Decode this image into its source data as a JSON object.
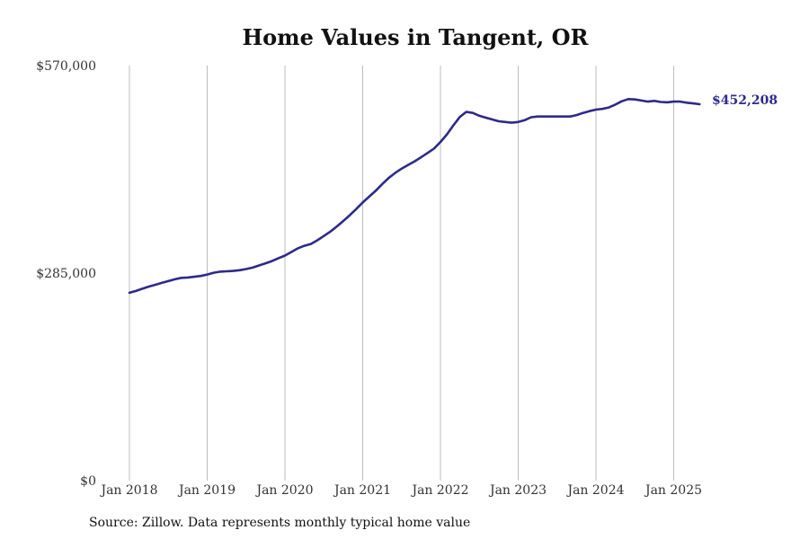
{
  "chart_data": {
    "type": "line",
    "title": "Home Values in Tangent, OR",
    "xlabel": "",
    "ylabel": "",
    "ylim": [
      0,
      570000
    ],
    "y_ticks": [
      {
        "value": 0,
        "label": "$0"
      },
      {
        "value": 285000,
        "label": "$285,000"
      },
      {
        "value": 570000,
        "label": "$570,000"
      }
    ],
    "x_ticks": [
      {
        "value": 2018,
        "label": "Jan 2018"
      },
      {
        "value": 2019,
        "label": "Jan 2019"
      },
      {
        "value": 2020,
        "label": "Jan 2020"
      },
      {
        "value": 2021,
        "label": "Jan 2021"
      },
      {
        "value": 2022,
        "label": "Jan 2022"
      },
      {
        "value": 2023,
        "label": "Jan 2023"
      },
      {
        "value": 2024,
        "label": "Jan 2024"
      },
      {
        "value": 2025,
        "label": "Jan 2025"
      }
    ],
    "grid": "vertical",
    "line_color": "#2e2a8a",
    "end_label": "$452,208",
    "series": [
      {
        "x": [
          "2018-01",
          "2018-02",
          "2018-03",
          "2018-04",
          "2018-05",
          "2018-06",
          "2018-07",
          "2018-08",
          "2018-09",
          "2018-10",
          "2018-11",
          "2018-12",
          "2019-01",
          "2019-02",
          "2019-03",
          "2019-04",
          "2019-05",
          "2019-06",
          "2019-07",
          "2019-08",
          "2019-09",
          "2019-10",
          "2019-11",
          "2019-12",
          "2020-01",
          "2020-02",
          "2020-03",
          "2020-04",
          "2020-05",
          "2020-06",
          "2020-07",
          "2020-08",
          "2020-09",
          "2020-10",
          "2020-11",
          "2020-12",
          "2021-01",
          "2021-02",
          "2021-03",
          "2021-04",
          "2021-05",
          "2021-06",
          "2021-07",
          "2021-08",
          "2021-09",
          "2021-10",
          "2021-11",
          "2021-12",
          "2022-01",
          "2022-02",
          "2022-03",
          "2022-04",
          "2022-05",
          "2022-06",
          "2022-07",
          "2022-08",
          "2022-09",
          "2022-10",
          "2022-11",
          "2022-12",
          "2023-01",
          "2023-02",
          "2023-03",
          "2023-04",
          "2023-05",
          "2023-06",
          "2023-07",
          "2023-08",
          "2023-09",
          "2023-10",
          "2023-11",
          "2023-12",
          "2024-01",
          "2024-02",
          "2024-03",
          "2024-04",
          "2024-05",
          "2024-06",
          "2024-07",
          "2024-08",
          "2024-09",
          "2024-10",
          "2024-11",
          "2024-12",
          "2025-01",
          "2025-02",
          "2025-03",
          "2025-04",
          "2025-05"
        ],
        "values": [
          258000,
          260500,
          263500,
          266500,
          269000,
          271500,
          274000,
          276500,
          278500,
          279000,
          280000,
          281000,
          283000,
          285500,
          287000,
          287500,
          288000,
          289000,
          290500,
          292500,
          295500,
          298500,
          301500,
          305500,
          309000,
          314000,
          319000,
          322500,
          325000,
          330000,
          336000,
          342000,
          349000,
          356500,
          364500,
          373000,
          382000,
          390000,
          398000,
          407000,
          415500,
          422500,
          428500,
          433500,
          438500,
          444000,
          450000,
          456000,
          465000,
          475500,
          488000,
          499500,
          506500,
          505000,
          501000,
          498500,
          496000,
          493500,
          492500,
          491500,
          492500,
          495000,
          499000,
          500000,
          500000,
          500000,
          500000,
          500000,
          500000,
          502000,
          505000,
          507500,
          509500,
          510500,
          512500,
          516500,
          521000,
          524000,
          523500,
          522000,
          520500,
          521500,
          520000,
          519500,
          520500,
          520500,
          519000,
          518000,
          452208
        ]
      }
    ]
  },
  "source": "Source: Zillow. Data represents monthly typical home value"
}
